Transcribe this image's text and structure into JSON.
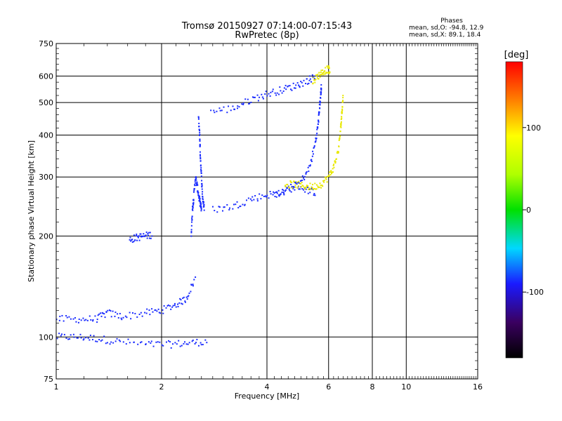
{
  "chart_data": {
    "type": "scatter",
    "title": "Tromsø 20150927 07:14:00-07:15:43",
    "subtitle": "RwPretec (8p)",
    "phase_stats": {
      "heading": "Phases",
      "line_o": "mean, sd,O: -94.8, 12.9",
      "line_x": "mean, sd,X:  89.1, 18.4"
    },
    "xlabel": "Frequency [MHz]",
    "ylabel": "Stationary phase Virtual Height [km]",
    "x_scale": "log2",
    "y_scale": "log",
    "xlim": [
      1,
      16
    ],
    "ylim": [
      75,
      750
    ],
    "x_ticks": [
      1,
      2,
      4,
      6,
      8,
      10,
      16
    ],
    "x_tick_labels": [
      "1",
      "2",
      "4",
      "6",
      "8",
      "10",
      "16"
    ],
    "x_grid": [
      2,
      4,
      6,
      8,
      10
    ],
    "y_ticks": [
      75,
      100,
      200,
      300,
      400,
      500,
      600,
      750
    ],
    "y_tick_labels": [
      "75",
      "100",
      "200",
      "300",
      "400",
      "500",
      "600",
      "750"
    ],
    "y_grid": [
      100,
      200,
      300,
      400,
      500,
      600
    ],
    "colorbar": {
      "label": "[deg]",
      "range": [
        -180,
        180
      ],
      "ticks": [
        100,
        0,
        -100
      ],
      "tick_labels": [
        "100",
        "0",
        "-100"
      ]
    },
    "series": [
      {
        "phase": -95,
        "color": "#1a2cff",
        "trace_x": [
          1.0,
          1.15,
          1.3,
          1.5,
          1.8,
          2.1,
          2.4,
          2.7
        ],
        "trace_y": [
          100,
          100,
          99,
          97,
          95,
          95,
          96,
          97
        ]
      },
      {
        "phase": -95,
        "color": "#1a2cff",
        "trace_x": [
          1.0,
          1.15,
          1.3,
          1.4,
          1.55,
          1.8,
          2.0,
          2.2,
          2.35,
          2.5
        ],
        "trace_y": [
          113,
          113,
          113,
          118,
          115,
          118,
          120,
          125,
          130,
          150
        ]
      },
      {
        "phase": -95,
        "color": "#1a2cff",
        "trace_x": [
          1.62,
          1.7,
          1.78,
          1.88
        ],
        "trace_y": [
          195,
          198,
          200,
          202
        ]
      },
      {
        "phase": -95,
        "color": "#1a2cff",
        "trace_x": [
          2.43,
          2.45,
          2.47,
          2.5,
          2.53,
          2.56,
          2.58,
          2.6
        ],
        "trace_y": [
          200,
          240,
          260,
          300,
          280,
          260,
          250,
          240
        ]
      },
      {
        "phase": -95,
        "color": "#1a2cff",
        "trace_x": [
          2.55,
          2.57,
          2.58,
          2.6,
          2.62,
          2.65
        ],
        "trace_y": [
          450,
          400,
          350,
          300,
          260,
          240
        ]
      },
      {
        "phase": -95,
        "color": "#1a2cff",
        "trace_x": [
          2.8,
          3.2,
          3.6,
          4.0,
          4.4,
          4.8,
          5.2,
          5.5
        ],
        "trace_y": [
          240,
          245,
          258,
          265,
          270,
          285,
          275,
          270
        ]
      },
      {
        "phase": -95,
        "color": "#1a2cff",
        "trace_x": [
          4.2,
          4.6,
          5.0,
          5.3,
          5.5,
          5.6,
          5.65,
          5.7,
          5.72
        ],
        "trace_y": [
          265,
          272,
          290,
          320,
          380,
          430,
          480,
          530,
          560
        ]
      },
      {
        "phase": -95,
        "color": "#1a2cff",
        "trace_x": [
          2.75,
          3.2,
          3.6,
          4.0,
          4.4,
          4.8,
          5.2,
          5.5
        ],
        "trace_y": [
          470,
          480,
          510,
          530,
          545,
          560,
          580,
          600
        ]
      },
      {
        "phase": 90,
        "color": "#e8e800",
        "trace_x": [
          4.5,
          4.8,
          5.1,
          5.4,
          5.7,
          6.0
        ],
        "trace_y": [
          285,
          285,
          282,
          280,
          285,
          300
        ]
      },
      {
        "phase": 90,
        "color": "#e8e800",
        "trace_x": [
          6.0,
          6.2,
          6.4,
          6.5,
          6.55,
          6.6
        ],
        "trace_y": [
          300,
          320,
          360,
          420,
          470,
          520
        ]
      },
      {
        "phase": 90,
        "color": "#e8e800",
        "trace_x": [
          5.4,
          5.6,
          5.8,
          6.0,
          6.05
        ],
        "trace_y": [
          580,
          600,
          620,
          630,
          610
        ]
      }
    ]
  }
}
